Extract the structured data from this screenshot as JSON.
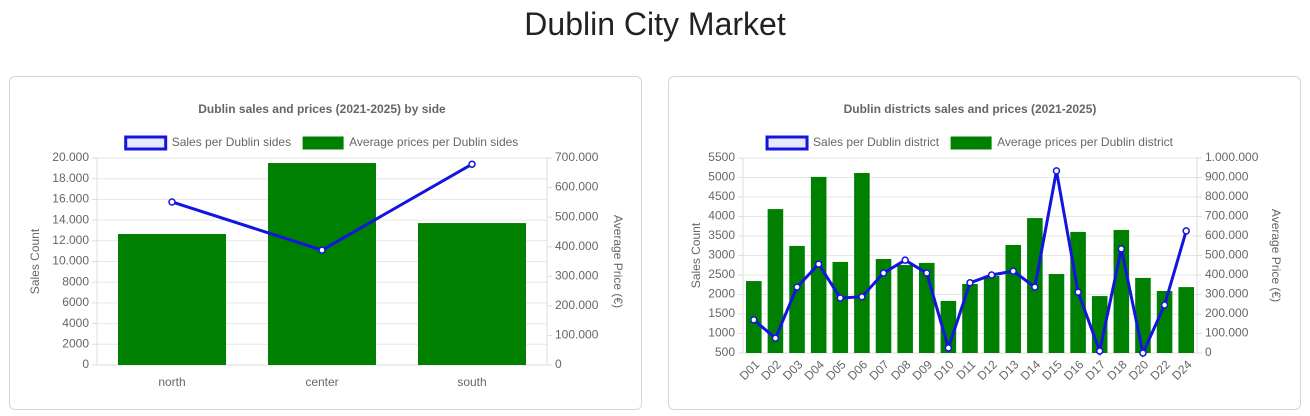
{
  "header": {
    "title": "Dublin City Market"
  },
  "chart_data": [
    {
      "type": "bar-line",
      "title": "Dublin sales and prices (2021-2025) by side",
      "categories": [
        "north",
        "center",
        "south"
      ],
      "series": [
        {
          "name": "Sales per Dublin sides",
          "type": "line",
          "color": "#1414e0",
          "axis": "y",
          "values": [
            15750,
            11100,
            19400
          ]
        },
        {
          "name": "Average prices per Dublin sides",
          "type": "bar",
          "color": "#008000",
          "axis": "y2",
          "values": [
            443000,
            683000,
            480000
          ]
        }
      ],
      "ylabel": "Sales Count",
      "y2label": "Average Price (€)",
      "ylim": [
        0,
        20000
      ],
      "yticks": [
        0,
        2000,
        4000,
        6000,
        8000,
        {
          "value": 10000,
          "label": "10.000"
        },
        {
          "value": 12000,
          "label": "12.000"
        },
        {
          "value": 14000,
          "label": "14.000"
        },
        {
          "value": 16000,
          "label": "16.000"
        },
        {
          "value": 18000,
          "label": "18.000"
        },
        {
          "value": 20000,
          "label": "20.000"
        }
      ],
      "y2lim": [
        0,
        700000
      ],
      "y2ticks": [
        0,
        {
          "value": 100000,
          "label": "100.000"
        },
        {
          "value": 200000,
          "label": "200.000"
        },
        {
          "value": 300000,
          "label": "300.000"
        },
        {
          "value": 400000,
          "label": "400.000"
        },
        {
          "value": 500000,
          "label": "500.000"
        },
        {
          "value": 600000,
          "label": "600.000"
        },
        {
          "value": 700000,
          "label": "700.000"
        }
      ],
      "grid": true,
      "legend": "top",
      "rotate_x_labels": false
    },
    {
      "type": "bar-line",
      "title": "Dublin districts sales and prices (2021-2025)",
      "categories": [
        "D01",
        "D02",
        "D03",
        "D04",
        "D05",
        "D06",
        "D07",
        "D08",
        "D09",
        "D10",
        "D11",
        "D12",
        "D13",
        "D14",
        "D15",
        "D16",
        "D17",
        "D18",
        "D20",
        "D22",
        "D24"
      ],
      "series": [
        {
          "name": "Sales per Dublin district",
          "type": "line",
          "color": "#1414e0",
          "axis": "y",
          "values": [
            1350,
            880,
            2190,
            2780,
            1910,
            1940,
            2550,
            2880,
            2550,
            630,
            2300,
            2500,
            2600,
            2190,
            5170,
            2060,
            550,
            3170,
            500,
            1730,
            3630
          ]
        },
        {
          "name": "Average prices per Dublin district",
          "type": "bar",
          "color": "#008000",
          "axis": "y2",
          "values": [
            369000,
            738000,
            549000,
            903000,
            467000,
            923000,
            482000,
            451000,
            462000,
            267000,
            354000,
            395000,
            554000,
            692000,
            405000,
            621000,
            292000,
            631000,
            385000,
            318000,
            338000
          ]
        }
      ],
      "ylabel": "Sales Count",
      "y2label": "Average Price (€)",
      "ylim": [
        500,
        5500
      ],
      "yticks": [
        500,
        1000,
        1500,
        2000,
        2500,
        3000,
        3500,
        4000,
        4500,
        5000,
        5500
      ],
      "y2lim": [
        0,
        1000000
      ],
      "y2ticks": [
        0,
        {
          "value": 100000,
          "label": "100.000"
        },
        {
          "value": 200000,
          "label": "200.000"
        },
        {
          "value": 300000,
          "label": "300.000"
        },
        {
          "value": 400000,
          "label": "400.000"
        },
        {
          "value": 500000,
          "label": "500.000"
        },
        {
          "value": 600000,
          "label": "600.000"
        },
        {
          "value": 700000,
          "label": "700.000"
        },
        {
          "value": 800000,
          "label": "800.000"
        },
        {
          "value": 900000,
          "label": "900.000"
        },
        {
          "value": 1000000,
          "label": "1.000.000"
        }
      ],
      "grid": true,
      "legend": "top",
      "rotate_x_labels": true
    }
  ]
}
